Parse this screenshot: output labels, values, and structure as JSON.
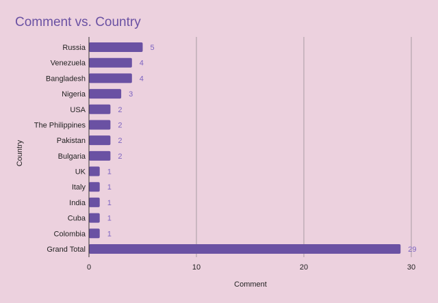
{
  "chart_data": {
    "type": "bar",
    "orientation": "horizontal",
    "title": "Comment vs. Country",
    "xlabel": "Comment",
    "ylabel": "Country",
    "categories": [
      "Russia",
      "Venezuela",
      "Bangladesh",
      "Nigeria",
      "USA",
      "The Philippines",
      "Pakistan",
      "Bulgaria",
      "UK",
      "Italy",
      "India",
      "Cuba",
      "Colombia",
      "Grand Total"
    ],
    "series": [
      {
        "values": [
          5,
          4,
          4,
          3,
          2,
          2,
          2,
          2,
          1,
          1,
          1,
          1,
          1,
          29
        ]
      }
    ],
    "xlim": [
      0,
      30
    ],
    "xticks": [
      0,
      10,
      20,
      30
    ],
    "grid": true,
    "data_labels": true,
    "legend": "none",
    "colors": {
      "bar": "#6a51a3",
      "data_label": "#7b63c0",
      "title": "#6a51a3",
      "gridline": "#a89aa1",
      "background": "#ecd1de"
    }
  }
}
